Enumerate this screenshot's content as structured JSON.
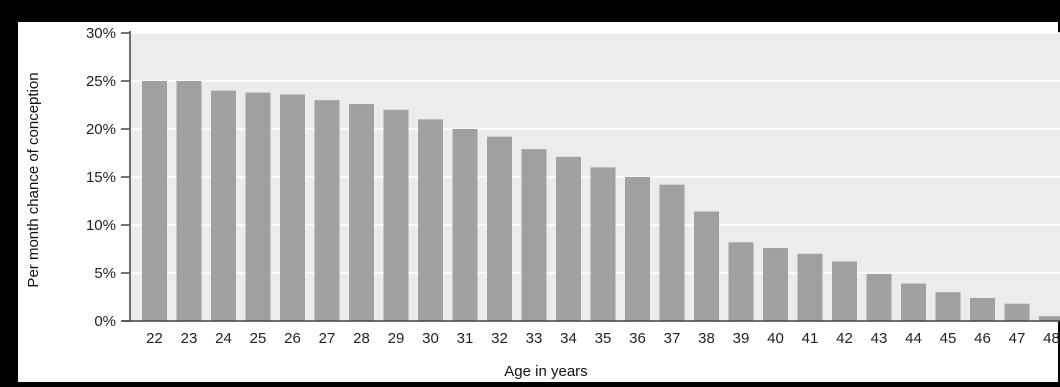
{
  "chart_data": {
    "type": "bar",
    "title": "",
    "xlabel": "Age in years",
    "ylabel": "Per month chance of conception",
    "categories": [
      "22",
      "23",
      "24",
      "25",
      "26",
      "27",
      "28",
      "29",
      "30",
      "31",
      "32",
      "33",
      "34",
      "35",
      "36",
      "37",
      "38",
      "39",
      "40",
      "41",
      "42",
      "43",
      "44",
      "45",
      "46",
      "47",
      "48"
    ],
    "values": [
      25,
      25,
      24,
      23.8,
      23.6,
      23,
      22.6,
      22,
      21,
      20,
      19.2,
      17.9,
      17.1,
      16,
      15,
      14.2,
      11.4,
      8.2,
      7.6,
      7,
      6.2,
      4.9,
      3.9,
      3,
      2.4,
      1.8,
      0.5
    ],
    "ylim": [
      0,
      30
    ],
    "yticks": [
      "0%",
      "5%",
      "10%",
      "15%",
      "20%",
      "25%",
      "30%"
    ],
    "ytick_values": [
      0,
      5,
      10,
      15,
      20,
      25,
      30
    ],
    "grid": true,
    "colors": {
      "bar": "#a0a0a0",
      "plot_background": "#ececec",
      "gridline": "#ffffff",
      "axis": "#444444",
      "frame": "#000000"
    }
  }
}
